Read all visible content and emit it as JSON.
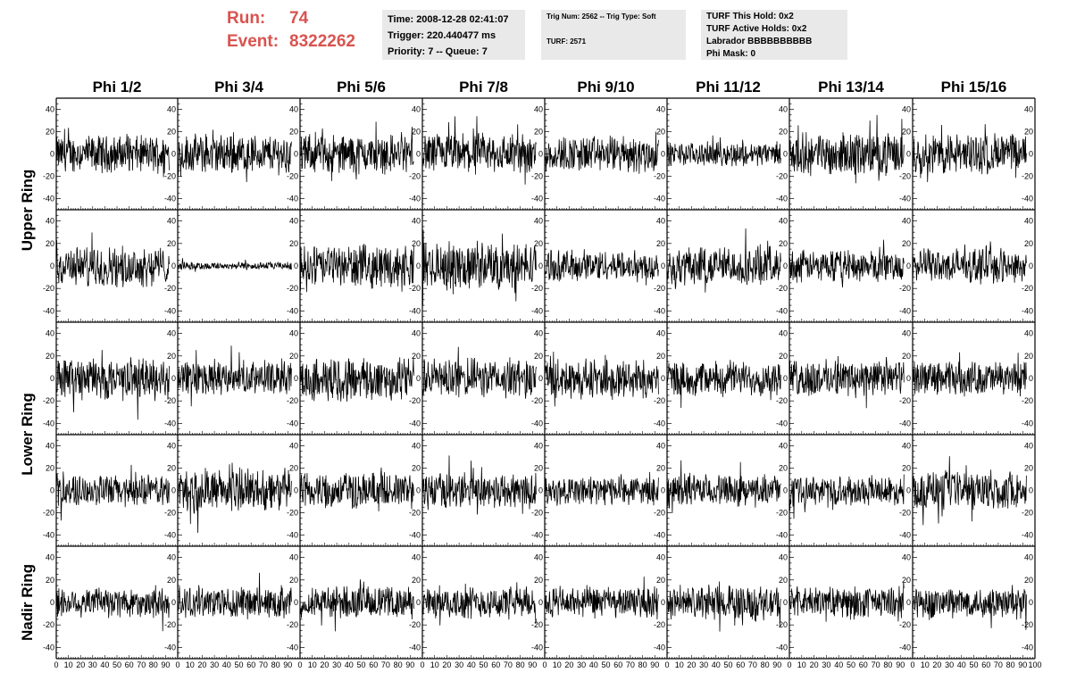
{
  "header": {
    "run_label": "Run:",
    "run_value": "74",
    "event_label": "Event:",
    "event_value": "8322262",
    "time": "Time: 2008-12-28 02:41:07",
    "trigger": "Trigger: 220.440477 ms",
    "priority": "Priority: 7 -- Queue: 7",
    "trig_num": "Trig Num: 2562 -- Trig Type: Soft",
    "turf": "TURF: 2571",
    "turf_this_hold": "TURF This Hold: 0x2",
    "turf_active_holds": "TURF Active Holds: 0x2",
    "labrador": "Labrador BBBBBBBBBB",
    "phi_mask": "Phi Mask: 0"
  },
  "colors": {
    "run_text": "#d9534f",
    "info_box": "#e9e9e9",
    "trace": "#000000"
  },
  "chart_data": {
    "type": "line",
    "columns": [
      "Phi 1/2",
      "Phi 3/4",
      "Phi 5/6",
      "Phi 7/8",
      "Phi 9/10",
      "Phi 11/12",
      "Phi 13/14",
      "Phi 15/16"
    ],
    "rings": [
      "Upper Ring",
      "Lower Ring",
      "Nadir Ring"
    ],
    "rows_per_ring": [
      2,
      2,
      1
    ],
    "xlim": [
      0,
      100
    ],
    "ylim": [
      -50,
      50
    ],
    "y_ticks": [
      -40,
      -20,
      0,
      20,
      40
    ],
    "x_tick_labels": [
      "0",
      "10",
      "20",
      "30",
      "40",
      "50",
      "60",
      "70",
      "80",
      "90",
      "100"
    ],
    "samples_per_trace": 260,
    "amplitudes": [
      [
        14,
        15,
        15,
        16,
        14,
        9,
        16,
        16
      ],
      [
        15,
        3,
        16,
        18,
        12,
        15,
        12,
        13
      ],
      [
        16,
        13,
        17,
        15,
        15,
        13,
        14,
        13
      ],
      [
        12,
        17,
        14,
        14,
        11,
        12,
        11,
        15
      ],
      [
        12,
        12,
        12,
        12,
        12,
        13,
        12,
        12
      ]
    ]
  }
}
